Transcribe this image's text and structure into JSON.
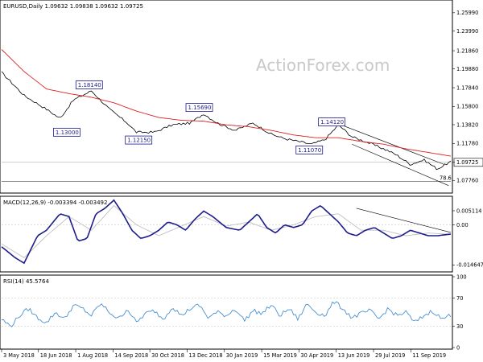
{
  "chart_data": [
    {
      "type": "line",
      "info": "EURUSD,Daily  1.09632 1.09838 1.09632 1.09725",
      "watermark": "ActionForex.com",
      "ylim": [
        1.0656,
        1.272
      ],
      "y_ticks": [
        "1.25990",
        "1.23990",
        "1.21860",
        "1.19880",
        "1.17840",
        "1.15800",
        "1.13820",
        "1.11780",
        "1.09725",
        "1.07760"
      ],
      "y_tick_values": [
        1.2599,
        1.2399,
        1.2186,
        1.1988,
        1.1784,
        1.158,
        1.1382,
        1.1178,
        1.09725,
        1.0776
      ],
      "last_price": "1.09725",
      "annotations": [
        {
          "label": "1.18140",
          "x": 0.195,
          "y": 1.1814
        },
        {
          "label": "1.13000",
          "x": 0.145,
          "y": 1.13
        },
        {
          "label": "1.12150",
          "x": 0.305,
          "y": 1.1215
        },
        {
          "label": "1.15690",
          "x": 0.44,
          "y": 1.1569
        },
        {
          "label": "1.14120",
          "x": 0.735,
          "y": 1.1412
        },
        {
          "label": "1.11070",
          "x": 0.685,
          "y": 1.1107
        }
      ],
      "fib_label": "78.6",
      "series": [
        {
          "x": [
            0,
            0.05,
            0.1,
            0.13,
            0.16,
            0.2,
            0.24,
            0.28,
            0.3,
            0.34,
            0.38,
            0.42,
            0.45,
            0.48,
            0.52,
            0.56,
            0.6,
            0.63,
            0.66,
            0.69,
            0.72,
            0.75,
            0.78,
            0.82,
            0.86,
            0.88,
            0.91,
            0.94,
            0.97,
            1.0
          ],
          "values": [
            1.195,
            1.17,
            1.155,
            1.145,
            1.165,
            1.175,
            1.155,
            1.14,
            1.13,
            1.13,
            1.138,
            1.14,
            1.15,
            1.14,
            1.132,
            1.14,
            1.128,
            1.123,
            1.12,
            1.117,
            1.122,
            1.138,
            1.125,
            1.118,
            1.11,
            1.105,
            1.095,
            1.1,
            1.09,
            1.098
          ]
        },
        {
          "x": [
            0,
            0.05,
            0.1,
            0.15,
            0.2,
            0.25,
            0.3,
            0.35,
            0.4,
            0.45,
            0.5,
            0.55,
            0.6,
            0.65,
            0.7,
            0.75,
            0.8,
            0.85,
            0.9,
            0.95,
            1.0
          ],
          "values": [
            1.22,
            1.196,
            1.177,
            1.172,
            1.168,
            1.162,
            1.153,
            1.146,
            1.143,
            1.142,
            1.138,
            1.136,
            1.132,
            1.127,
            1.124,
            1.124,
            1.12,
            1.117,
            1.112,
            1.108,
            1.104
          ]
        }
      ]
    },
    {
      "type": "line",
      "label": "MACD(12,26,9) -0.003394 -0.003492",
      "ylim": [
        -0.0166,
        0.0098
      ],
      "y_ticks": [
        "0.005114",
        "0.00",
        "-0.014647"
      ],
      "y_tick_values": [
        0.005114,
        0.0,
        -0.014647
      ],
      "series": [
        {
          "x": [
            0,
            0.03,
            0.05,
            0.08,
            0.1,
            0.13,
            0.15,
            0.17,
            0.19,
            0.21,
            0.23,
            0.25,
            0.27,
            0.29,
            0.31,
            0.33,
            0.35,
            0.37,
            0.39,
            0.41,
            0.43,
            0.45,
            0.47,
            0.5,
            0.53,
            0.55,
            0.57,
            0.59,
            0.61,
            0.63,
            0.65,
            0.67,
            0.69,
            0.71,
            0.73,
            0.75,
            0.77,
            0.79,
            0.81,
            0.83,
            0.85,
            0.87,
            0.89,
            0.91,
            0.93,
            0.95,
            0.97,
            1.0
          ],
          "values": [
            -0.008,
            -0.012,
            -0.014,
            -0.004,
            -0.002,
            0.004,
            0.003,
            -0.006,
            -0.005,
            0.004,
            0.006,
            0.009,
            0.004,
            -0.002,
            -0.005,
            -0.004,
            -0.002,
            0.001,
            0.0,
            -0.002,
            0.002,
            0.005,
            0.003,
            -0.001,
            -0.002,
            0.001,
            0.004,
            -0.001,
            -0.003,
            0.0,
            -0.001,
            0.0,
            0.005,
            0.007,
            0.004,
            0.001,
            -0.003,
            -0.004,
            -0.002,
            -0.001,
            -0.003,
            -0.005,
            -0.004,
            -0.002,
            -0.003,
            -0.004,
            -0.004,
            -0.0034
          ]
        },
        {
          "x": [
            0,
            0.05,
            0.1,
            0.15,
            0.2,
            0.25,
            0.3,
            0.35,
            0.4,
            0.45,
            0.5,
            0.55,
            0.6,
            0.65,
            0.7,
            0.75,
            0.8,
            0.85,
            0.9,
            0.95,
            1.0
          ],
          "values": [
            -0.007,
            -0.012,
            -0.004,
            0.003,
            -0.002,
            0.007,
            0.0,
            -0.004,
            -0.0005,
            0.003,
            -0.0005,
            0.001,
            -0.002,
            0.0,
            0.003,
            0.004,
            -0.002,
            -0.002,
            -0.004,
            -0.003,
            -0.0035
          ]
        }
      ]
    },
    {
      "type": "line",
      "label": "RSI(14) 45.5764",
      "ylim": [
        0,
        100
      ],
      "y_ticks": [
        "100",
        "70",
        "30",
        "0"
      ],
      "y_tick_values": [
        100,
        70,
        30,
        0
      ],
      "series": [
        {
          "x": [
            0,
            0.02,
            0.04,
            0.06,
            0.08,
            0.1,
            0.12,
            0.14,
            0.16,
            0.18,
            0.2,
            0.22,
            0.24,
            0.26,
            0.28,
            0.3,
            0.32,
            0.34,
            0.36,
            0.38,
            0.4,
            0.42,
            0.44,
            0.46,
            0.48,
            0.5,
            0.52,
            0.54,
            0.56,
            0.58,
            0.6,
            0.62,
            0.64,
            0.66,
            0.68,
            0.7,
            0.72,
            0.74,
            0.76,
            0.78,
            0.8,
            0.82,
            0.84,
            0.86,
            0.88,
            0.9,
            0.92,
            0.94,
            0.96,
            0.98,
            1.0
          ],
          "values": [
            40,
            30,
            45,
            55,
            42,
            35,
            50,
            40,
            60,
            55,
            45,
            62,
            50,
            40,
            55,
            35,
            48,
            52,
            40,
            58,
            45,
            55,
            60,
            42,
            50,
            45,
            55,
            38,
            52,
            48,
            60,
            45,
            55,
            40,
            62,
            50,
            45,
            65,
            55,
            42,
            48,
            52,
            40,
            55,
            45,
            50,
            35,
            45,
            52,
            40,
            46
          ]
        }
      ]
    }
  ],
  "x_ticks": [
    "3 May 2018",
    "18 Jun 2018",
    "1 Aug 2018",
    "14 Sep 2018",
    "30 Oct 2018",
    "13 Dec 2018",
    "30 Jan 2019",
    "15 Mar 2019",
    "30 Apr 2019",
    "13 Jun 2019",
    "29 Jul 2019",
    "11 Sep 2019"
  ],
  "x_tick_values": [
    0.0,
    0.082,
    0.165,
    0.248,
    0.33,
    0.413,
    0.496,
    0.579,
    0.662,
    0.745,
    0.828,
    0.911
  ],
  "colors": {
    "price": "#000000",
    "ma": "#e02020",
    "macd": "#1c1c8c",
    "signal": "#c0c0c0",
    "rsi": "#4a90d0",
    "anno": "#1a1a8c"
  }
}
